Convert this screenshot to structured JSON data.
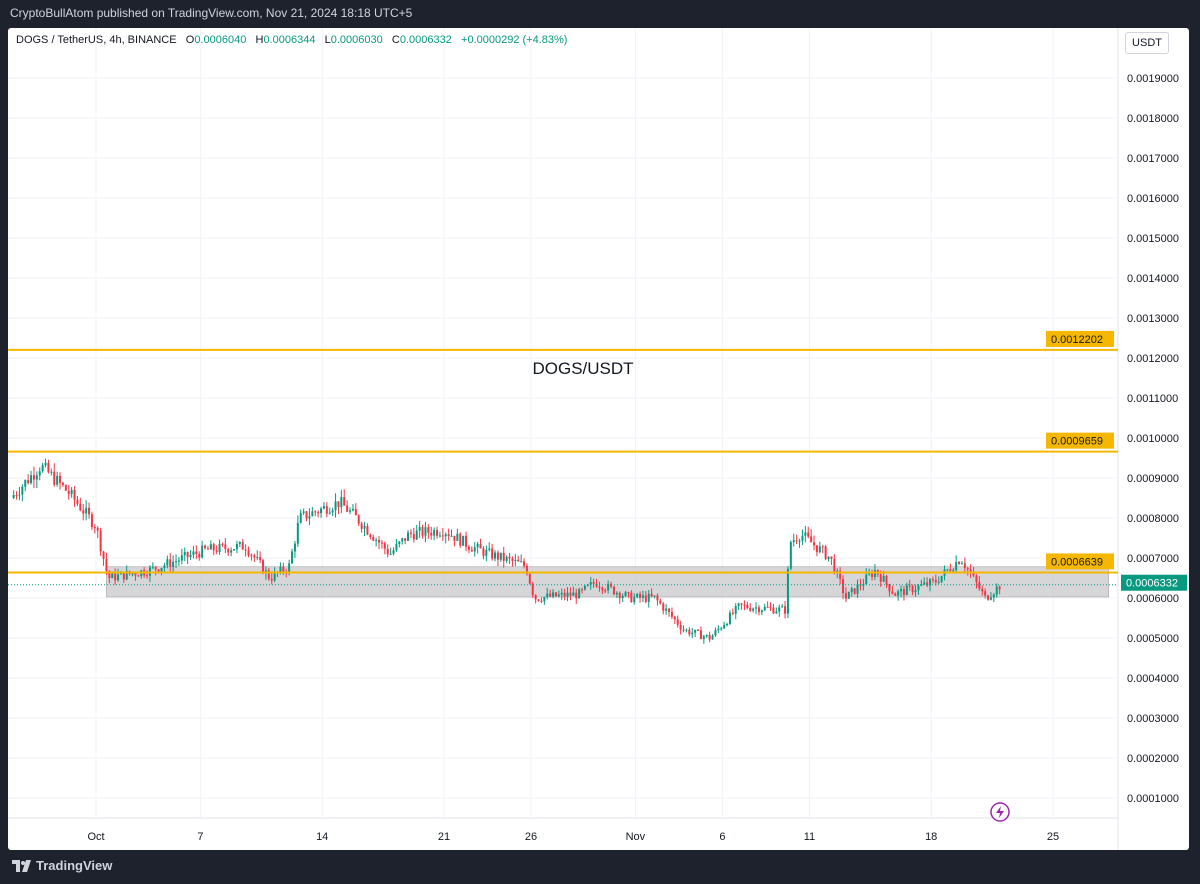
{
  "publisher": "CryptoBullAtom published on TradingView.com, Nov 21, 2024 18:18 UTC+5",
  "legend": {
    "symbol": "DOGS / TetherUS, 4h, BINANCE",
    "o_label": "O",
    "o": "0.0006040",
    "h_label": "H",
    "h": "0.0006344",
    "l_label": "L",
    "l": "0.0006030",
    "c_label": "C",
    "c": "0.0006332",
    "change": "+0.0000292 (+4.83%)"
  },
  "currency": "USDT",
  "footer": "TradingView",
  "colors": {
    "up": "#089981",
    "down": "#f23645",
    "level": "#f5b700",
    "zone": "#c8c8cc"
  },
  "chart_data": {
    "type": "candlestick",
    "title": "DOGS/USDT",
    "ylim": [
      0.0,
      0.002
    ],
    "y_ticks": [
      "0.0019000",
      "0.0018000",
      "0.0017000",
      "0.0016000",
      "0.0015000",
      "0.0014000",
      "0.0013000",
      "0.0012000",
      "0.0011000",
      "0.0010000",
      "0.0009000",
      "0.0008000",
      "0.0007000",
      "0.0006000",
      "0.0005000",
      "0.0004000",
      "0.0003000",
      "0.0002000",
      "0.0001000"
    ],
    "y_tick_values": [
      0.0019,
      0.0018,
      0.0017,
      0.0016,
      0.0015,
      0.0014,
      0.0013,
      0.0012,
      0.0011,
      0.001,
      0.0009,
      0.0008,
      0.0007,
      0.0006,
      0.0005,
      0.0004,
      0.0003,
      0.0002,
      0.0001
    ],
    "x_ticks": [
      {
        "label": "Oct",
        "day": 0
      },
      {
        "label": "7",
        "day": 6
      },
      {
        "label": "14",
        "day": 13
      },
      {
        "label": "21",
        "day": 20
      },
      {
        "label": "26",
        "day": 25
      },
      {
        "label": "Nov",
        "day": 31
      },
      {
        "label": "6",
        "day": 36
      },
      {
        "label": "11",
        "day": 41
      },
      {
        "label": "18",
        "day": 48
      },
      {
        "label": "25",
        "day": 55
      }
    ],
    "levels": [
      {
        "price": 0.0012202,
        "label": "0.0012202"
      },
      {
        "price": 0.0009659,
        "label": "0.0009659"
      },
      {
        "price": 0.0006639,
        "label": "0.0006639"
      }
    ],
    "zone": {
      "from_day": 0.6,
      "to_day": 58.2,
      "low": 0.0006025,
      "high": 0.000678
    },
    "last_price": {
      "price": 0.0006332,
      "label": "0.0006332"
    },
    "price_path_days": [
      -4.9,
      -3.2,
      -2.9,
      -1.5,
      0,
      0.7,
      3.1,
      6.3,
      8.6,
      10,
      11.1,
      11.7,
      14,
      15.2,
      16.9,
      18,
      20,
      21.5,
      22.6,
      24.7,
      25.2,
      27.8,
      28.7,
      30.7,
      32.1,
      33.8,
      35.3,
      37,
      39.6,
      39.9,
      40.5,
      42.2,
      43.1,
      44.8,
      45.9,
      48.2,
      49.7,
      51.1,
      52
    ],
    "price_path": [
      0.00085,
      0.00093,
      0.00092,
      0.00086,
      0.00078,
      0.00065,
      0.00067,
      0.00072,
      0.00073,
      0.00065,
      0.00068,
      0.0008,
      0.00084,
      0.00079,
      0.00071,
      0.00076,
      0.00077,
      0.00073,
      0.00071,
      0.00068,
      0.0006,
      0.00061,
      0.00064,
      0.0006,
      0.0006,
      0.00052,
      0.0005,
      0.00058,
      0.00057,
      0.00074,
      0.00076,
      0.0007,
      0.0006,
      0.00067,
      0.00061,
      0.00064,
      0.0007,
      0.0006,
      0.0006332
    ]
  }
}
